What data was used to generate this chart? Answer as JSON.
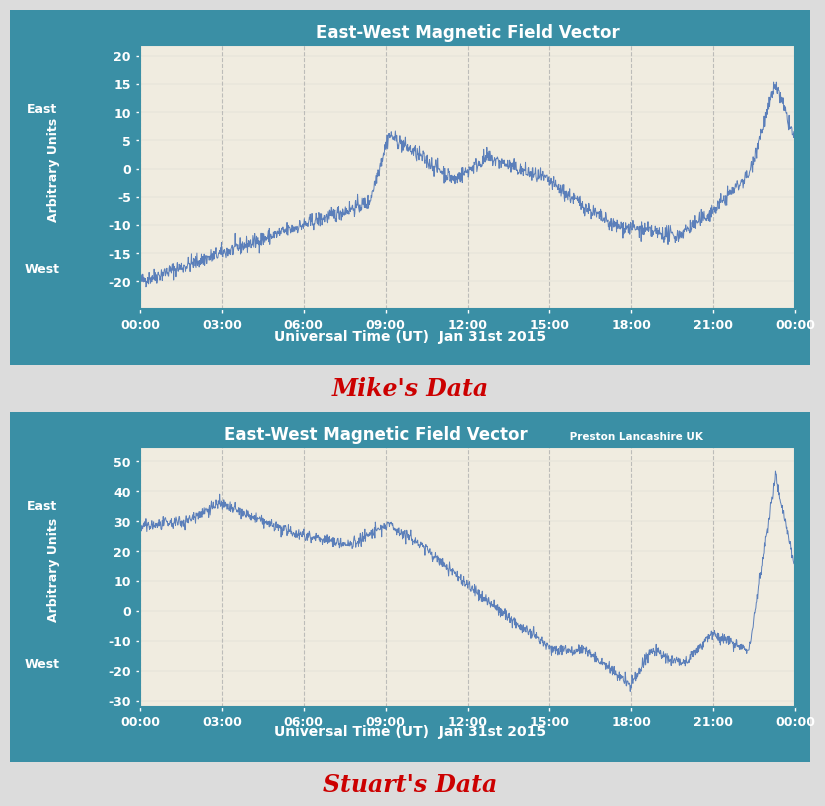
{
  "fig_bg": "#dcdcdc",
  "panel_bg": "#3a8fa5",
  "plot_bg": "#f0ece0",
  "line_color": "#5b7fba",
  "title1": "East-West Magnetic Field Vector",
  "title2_main": "East-West Magnetic Field Vector",
  "title2_sub": " Preston Lancashire UK",
  "xlabel": "Universal Time (UT)  Jan 31st 2015",
  "ylabel": "Arbitrary Units",
  "label_east": "East",
  "label_west": "West",
  "caption1": "Mike's Data",
  "caption2": "Stuart's Data",
  "caption_color": "#cc0000",
  "tick_color": "#ffffff",
  "title_color": "#ffffff",
  "xlabel_color": "#ffffff",
  "ylabel_color": "#ffffff",
  "grid_color": "#b0b0b0",
  "ylim1": [
    -25,
    22
  ],
  "ylim2": [
    -32,
    55
  ],
  "yticks1": [
    -20,
    -15,
    -10,
    -5,
    0,
    5,
    10,
    15,
    20
  ],
  "yticks2": [
    -30,
    -20,
    -10,
    0,
    10,
    20,
    30,
    40,
    50
  ],
  "xtick_labels": [
    "00:00",
    "03:00",
    "06:00",
    "09:00",
    "12:00",
    "15:00",
    "18:00",
    "21:00",
    "00:00"
  ],
  "num_points": 1440
}
